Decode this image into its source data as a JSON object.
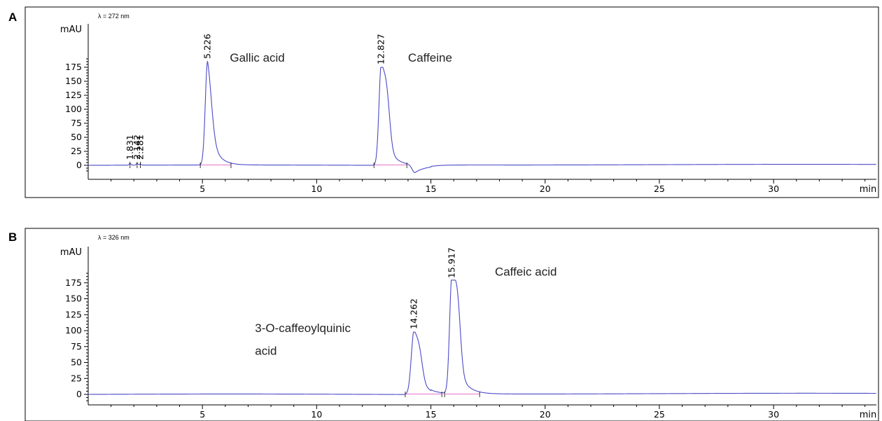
{
  "chart_data": [
    {
      "type": "line",
      "panel": "A",
      "wavelength": "λ = 272 nm",
      "ylabel": "mAU",
      "xlabel": "min",
      "xlim": [
        0,
        34.5
      ],
      "ylim": [
        -15,
        195
      ],
      "yticks": [
        0,
        25,
        50,
        75,
        100,
        125,
        150,
        175
      ],
      "xticks": [
        5,
        10,
        15,
        20,
        25,
        30
      ],
      "grid": false,
      "peaks": [
        {
          "rt": 1.831,
          "label": "1.831",
          "height": 3,
          "width": 0.04
        },
        {
          "rt": 2.142,
          "label": "2.142",
          "height": 3,
          "width": 0.04
        },
        {
          "rt": 2.281,
          "label": "2.281",
          "height": 2,
          "width": 0.04
        }
      ],
      "main_peaks": [
        {
          "rt": 5.226,
          "label": "5.226",
          "height": 185,
          "rise": 0.1,
          "tail": 0.32,
          "shoulder": 0
        },
        {
          "rt": 12.827,
          "label": "12.827",
          "height": 175,
          "rise": 0.1,
          "tail": 0.35,
          "shoulder": 0.62
        }
      ],
      "dip": {
        "x": 14.3,
        "depth": 14
      },
      "compounds": [
        {
          "name": "Gallic acid",
          "x": 6.2,
          "y": 185
        },
        {
          "name": "Caffeine",
          "x": 14.0,
          "y": 185
        }
      ]
    },
    {
      "type": "line",
      "panel": "B",
      "wavelength": "λ = 326 nm",
      "ylabel": "mAU",
      "xlabel": "min",
      "xlim": [
        0,
        34.5
      ],
      "ylim": [
        -8,
        205
      ],
      "yticks": [
        0,
        25,
        50,
        75,
        100,
        125,
        150,
        175
      ],
      "xticks": [
        5,
        10,
        15,
        20,
        25,
        30
      ],
      "grid": false,
      "peaks": [],
      "main_peaks": [
        {
          "rt": 14.262,
          "label": "14.262",
          "height": 98,
          "rise": 0.12,
          "tail": 0.38,
          "shoulder": 0.45
        },
        {
          "rt": 15.917,
          "label": "15.917",
          "height": 178,
          "rise": 0.1,
          "tail": 0.38,
          "shoulder": 0.72
        }
      ],
      "dip": null,
      "compounds": [
        {
          "name": "3-O-caffeoylquinic",
          "x": 7.3,
          "y": 98
        },
        {
          "name": "acid",
          "x": 7.3,
          "y": 62
        },
        {
          "name": "Caffeic acid",
          "x": 17.8,
          "y": 186
        }
      ]
    }
  ]
}
